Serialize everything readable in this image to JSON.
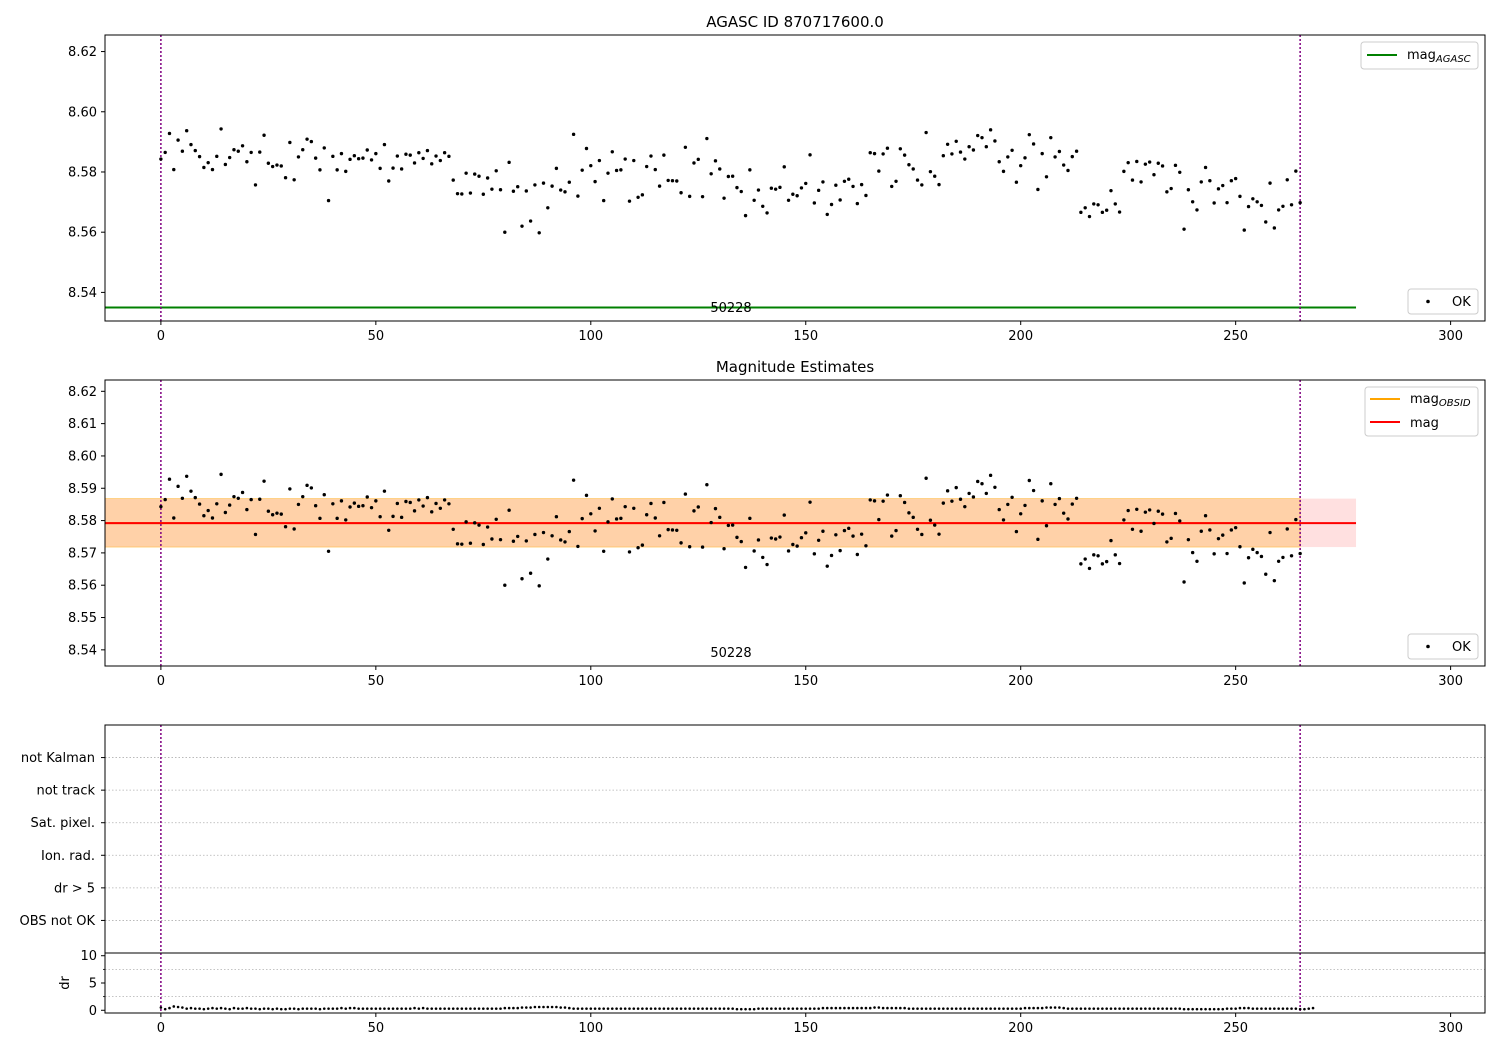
{
  "chart_data": [
    {
      "type": "scatter",
      "title": "AGASC ID 870717600.0",
      "xlim": [
        -13,
        308
      ],
      "ylim": [
        8.5305,
        8.6255
      ],
      "xticks": [
        0,
        50,
        100,
        150,
        200,
        250,
        300
      ],
      "yticks": [
        8.54,
        8.56,
        8.58,
        8.6,
        8.62
      ],
      "ytick_decimals": 2,
      "vlines": [
        0,
        265
      ],
      "vline_color": "#800080",
      "hlines": [
        {
          "y": 8.535,
          "x": [
            -13,
            278
          ],
          "color": "#008000",
          "label": "mag_AGASC"
        }
      ],
      "annotation": {
        "text": "50228",
        "x": 132,
        "y": 8.5334
      },
      "series_label": "OK",
      "marker_color": "#000000",
      "legend": {
        "lines": [
          {
            "label": "mag",
            "sub": "AGASC",
            "color": "#008000"
          }
        ],
        "points_label": "OK",
        "lines_loc": "upper-right",
        "points_loc": "lower-right"
      }
    },
    {
      "type": "scatter",
      "title": "Magnitude Estimates",
      "xlim": [
        -13,
        308
      ],
      "ylim": [
        8.535,
        8.6235
      ],
      "xticks": [
        0,
        50,
        100,
        150,
        200,
        250,
        300
      ],
      "yticks": [
        8.54,
        8.55,
        8.56,
        8.57,
        8.58,
        8.59,
        8.6,
        8.61,
        8.62
      ],
      "ytick_decimals": 2,
      "vlines": [
        0,
        265
      ],
      "vline_color": "#800080",
      "mean": 8.5792,
      "band_obsid": {
        "y": [
          8.5718,
          8.5868
        ],
        "x": [
          -13,
          265
        ],
        "color": "#ffa500"
      },
      "band_mag": {
        "y": [
          8.5718,
          8.5868
        ],
        "x": [
          -13,
          278
        ],
        "color": "#ff0000"
      },
      "annotation": {
        "text": "50228",
        "x": 132,
        "y": 8.5372
      },
      "legend": {
        "lines": [
          {
            "label": "mag",
            "sub": "OBSID",
            "color": "#ffa500"
          },
          {
            "label": "mag",
            "sub": "",
            "color": "#ff0000"
          }
        ],
        "points_label": "OK",
        "lines_loc": "upper-right",
        "points_loc": "lower-right"
      }
    },
    {
      "type": "scatter",
      "xlim": [
        -13,
        308
      ],
      "categories": [
        "OBS not OK",
        "dr > 5",
        "Ion. rad.",
        "Sat. pixel.",
        "not track",
        "not Kalman"
      ],
      "vlines": [
        0,
        265
      ],
      "vline_color": "#800080"
    },
    {
      "type": "scatter",
      "xlim": [
        -13,
        308
      ],
      "ylim": [
        -0.5,
        10.5
      ],
      "xticks": [
        0,
        50,
        100,
        150,
        200,
        250,
        300
      ],
      "yticks": [
        0,
        5,
        10
      ],
      "ylabel": "dr",
      "vlines": [
        0,
        265
      ],
      "vline_color": "#800080",
      "dr_values": [
        0.5,
        0.2,
        0.4,
        0.7,
        0.6,
        0.5,
        0.3,
        0.4,
        0.3,
        0.3,
        0.2,
        0.3,
        0.4,
        0.3,
        0.4,
        0.3,
        0.2,
        0.4,
        0.3,
        0.3,
        0.4,
        0.3,
        0.3,
        0.2,
        0.3,
        0.3,
        0.2,
        0.3,
        0.2,
        0.2,
        0.3,
        0.3,
        0.2,
        0.3,
        0.3,
        0.3,
        0.3,
        0.2,
        0.3,
        0.3,
        0.3,
        0.3,
        0.4,
        0.3,
        0.4,
        0.4,
        0.3,
        0.3,
        0.3,
        0.3,
        0.3,
        0.3,
        0.3,
        0.3,
        0.3,
        0.3,
        0.3,
        0.3,
        0.3,
        0.4,
        0.3,
        0.4,
        0.3,
        0.3,
        0.3,
        0.3,
        0.3,
        0.3,
        0.3,
        0.3,
        0.3,
        0.3,
        0.3,
        0.3,
        0.3,
        0.3,
        0.3,
        0.3,
        0.3,
        0.3,
        0.4,
        0.4,
        0.4,
        0.4,
        0.5,
        0.5,
        0.5,
        0.6,
        0.6,
        0.6,
        0.6,
        0.6,
        0.6,
        0.5,
        0.5,
        0.4,
        0.3,
        0.3,
        0.3,
        0.3,
        0.3,
        0.3,
        0.3,
        0.3,
        0.3,
        0.3,
        0.3,
        0.3,
        0.3,
        0.3,
        0.3,
        0.3,
        0.3,
        0.3,
        0.3,
        0.3,
        0.3,
        0.3,
        0.3,
        0.3,
        0.3,
        0.3,
        0.3,
        0.3,
        0.3,
        0.3,
        0.3,
        0.3,
        0.3,
        0.3,
        0.3,
        0.3,
        0.3,
        0.3,
        0.2,
        0.2,
        0.2,
        0.2,
        0.2,
        0.3,
        0.3,
        0.3,
        0.3,
        0.3,
        0.3,
        0.3,
        0.3,
        0.3,
        0.3,
        0.3,
        0.3,
        0.3,
        0.3,
        0.3,
        0.4,
        0.4,
        0.4,
        0.4,
        0.4,
        0.4,
        0.4,
        0.4,
        0.4,
        0.4,
        0.4,
        0.4,
        0.5,
        0.5,
        0.4,
        0.4,
        0.4,
        0.4,
        0.4,
        0.4,
        0.3,
        0.3,
        0.3,
        0.3,
        0.3,
        0.3,
        0.3,
        0.3,
        0.3,
        0.3,
        0.3,
        0.3,
        0.3,
        0.3,
        0.3,
        0.3,
        0.3,
        0.3,
        0.3,
        0.3,
        0.3,
        0.3,
        0.3,
        0.3,
        0.3,
        0.3,
        0.3,
        0.4,
        0.4,
        0.4,
        0.4,
        0.4,
        0.5,
        0.5,
        0.5,
        0.5,
        0.4,
        0.3,
        0.3,
        0.3,
        0.3,
        0.3,
        0.3,
        0.3,
        0.3,
        0.3,
        0.3,
        0.3,
        0.3,
        0.3,
        0.3,
        0.3,
        0.3,
        0.3,
        0.3,
        0.3,
        0.3,
        0.3,
        0.3,
        0.3,
        0.3,
        0.3,
        0.3,
        0.3,
        0.2,
        0.2,
        0.2,
        0.2,
        0.2,
        0.2,
        0.2,
        0.2,
        0.2,
        0.2,
        0.3,
        0.3,
        0.3,
        0.4,
        0.4,
        0.4,
        0.3,
        0.3,
        0.3,
        0.3,
        0.3,
        0.3,
        0.3,
        0.3,
        0.3,
        0.3,
        0.3,
        0.2,
        0.2,
        0.3,
        0.4
      ]
    }
  ],
  "mag_values": [
    8.5843,
    8.5865,
    8.5928,
    8.5808,
    8.5906,
    8.5869,
    8.5937,
    8.5891,
    8.5871,
    8.5851,
    8.5815,
    8.5831,
    8.5808,
    8.5852,
    8.5943,
    8.5825,
    8.5848,
    8.5874,
    8.5869,
    8.5887,
    8.5834,
    8.5865,
    8.5757,
    8.5866,
    8.5922,
    8.5829,
    8.5818,
    8.5823,
    8.582,
    8.5781,
    8.5898,
    8.5774,
    8.585,
    8.5874,
    8.5909,
    8.5901,
    8.5846,
    8.5807,
    8.588,
    8.5705,
    8.5852,
    8.5807,
    8.5861,
    8.5802,
    8.5842,
    8.5854,
    8.5844,
    8.5846,
    8.5873,
    8.584,
    8.5861,
    8.5812,
    8.5891,
    8.577,
    8.5813,
    8.5853,
    8.581,
    8.5859,
    8.5856,
    8.583,
    8.5864,
    8.5845,
    8.5871,
    8.5827,
    8.5853,
    8.5838,
    8.5864,
    8.5852,
    8.5773,
    8.5728,
    8.5727,
    8.5796,
    8.573,
    8.5793,
    8.5786,
    8.5726,
    8.578,
    8.5743,
    8.5804,
    8.5741,
    8.56,
    8.5832,
    8.5736,
    8.5751,
    8.562,
    8.5737,
    8.5637,
    8.5757,
    8.5598,
    8.5763,
    8.5681,
    8.5753,
    8.5812,
    8.574,
    8.5734,
    8.5766,
    8.5925,
    8.572,
    8.5806,
    8.5878,
    8.5821,
    8.5768,
    8.5838,
    8.5705,
    8.5796,
    8.5867,
    8.5805,
    8.5807,
    8.5843,
    8.5703,
    8.5838,
    8.5716,
    8.5724,
    8.5818,
    8.5853,
    8.5808,
    8.5753,
    8.5856,
    8.5772,
    8.5771,
    8.577,
    8.5731,
    8.5882,
    8.5719,
    8.583,
    8.5842,
    8.5718,
    8.5911,
    8.5794,
    8.5837,
    8.581,
    8.5713,
    8.5785,
    8.5786,
    8.5748,
    8.5735,
    8.5655,
    8.5807,
    8.5706,
    8.574,
    8.5686,
    8.5664,
    8.5746,
    8.5743,
    8.5749,
    8.5817,
    8.5706,
    8.5726,
    8.5721,
    8.5747,
    8.5762,
    8.5857,
    8.5697,
    8.5739,
    8.5767,
    8.5659,
    8.5692,
    8.5756,
    8.5707,
    8.5769,
    8.5776,
    8.5752,
    8.5695,
    8.5758,
    8.5722,
    8.5864,
    8.5861,
    8.5803,
    8.586,
    8.5879,
    8.5752,
    8.5769,
    8.5877,
    8.5856,
    8.5824,
    8.581,
    8.5773,
    8.5757,
    8.5931,
    8.5801,
    8.5786,
    8.5758,
    8.5854,
    8.5892,
    8.586,
    8.5902,
    8.5866,
    8.5843,
    8.5884,
    8.5873,
    8.5921,
    8.5914,
    8.5884,
    8.594,
    8.5903,
    8.5834,
    8.5802,
    8.585,
    8.5872,
    8.5766,
    8.5821,
    8.5847,
    8.5924,
    8.5893,
    8.5742,
    8.5861,
    8.5784,
    8.5914,
    8.585,
    8.5868,
    8.5823,
    8.5805,
    8.5851,
    8.5869,
    8.5666,
    8.5681,
    8.5652,
    8.5694,
    8.5691,
    8.5666,
    8.5673,
    8.5738,
    8.5694,
    8.5667,
    8.5802,
    8.5831,
    8.5773,
    8.5835,
    8.5767,
    8.5826,
    8.5833,
    8.5791,
    8.5829,
    8.582,
    8.5734,
    8.5745,
    8.5822,
    8.5799,
    8.561,
    8.5741,
    8.5701,
    8.5674,
    8.5767,
    8.5815,
    8.5771,
    8.5697,
    8.5744,
    8.5755,
    8.5698,
    8.5771,
    8.5778,
    8.5719,
    8.5607,
    8.5685,
    8.5711,
    8.5701,
    8.5689,
    8.5634,
    8.5763,
    8.5614,
    8.5674,
    8.5686,
    8.5774,
    8.5691,
    8.5803,
    8.5698
  ]
}
